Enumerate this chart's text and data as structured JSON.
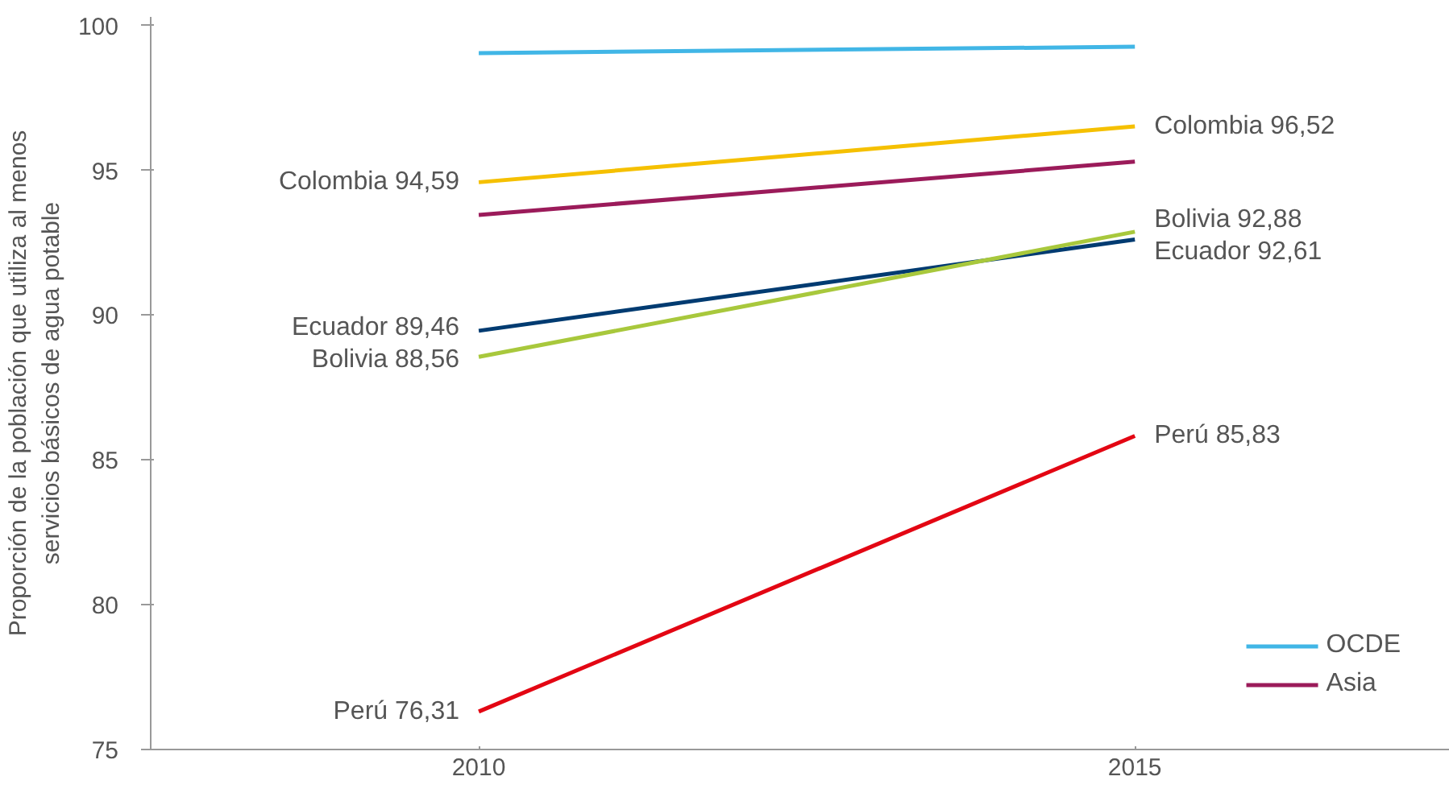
{
  "chart_data": {
    "type": "line",
    "ylabel": "Proporción de la población que utiliza al menos\nservicios básicos de agua potable",
    "x": [
      2010,
      2015
    ],
    "xlim": [
      2007.5,
      2017.4
    ],
    "xticks": [
      2010,
      2015
    ],
    "ylim": [
      75,
      100.3
    ],
    "yticks": [
      75,
      80,
      85,
      90,
      95,
      100
    ],
    "grid": false,
    "legend": "bottom right",
    "line_style": "solid",
    "marker": "none",
    "series": [
      {
        "name": "OCDE",
        "color": "#41b6e6",
        "values": [
          99.05,
          99.27
        ]
      },
      {
        "name": "Colombia",
        "color": "#f5c000",
        "values": [
          94.59,
          96.52
        ],
        "value_labels": [
          "94,59",
          "96,52"
        ]
      },
      {
        "name": "Asia",
        "color": "#9b1b5a",
        "values": [
          93.46,
          95.3
        ]
      },
      {
        "name": "Ecuador",
        "color": "#003b71",
        "values": [
          89.46,
          92.61
        ],
        "value_labels": [
          "89,46",
          "92,61"
        ]
      },
      {
        "name": "Bolivia",
        "color": "#a8c83c",
        "values": [
          88.56,
          92.88
        ],
        "value_labels": [
          "88,56",
          "92,88"
        ]
      },
      {
        "name": "Perú",
        "color": "#e30613",
        "values": [
          76.31,
          85.83
        ],
        "value_labels": [
          "76,31",
          "85,83"
        ]
      }
    ]
  }
}
